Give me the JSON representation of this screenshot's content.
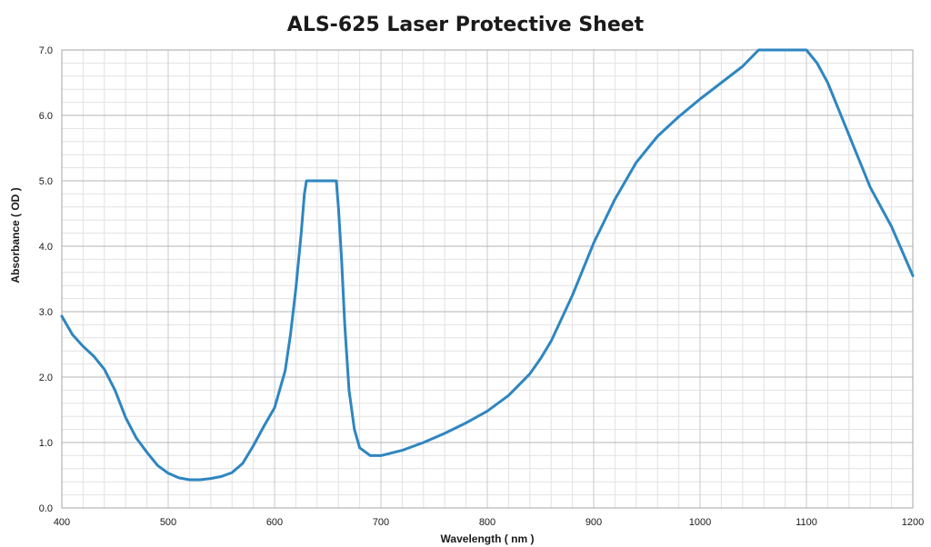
{
  "chart_data": {
    "type": "line",
    "title": "ALS-625 Laser Protective Sheet",
    "xlabel": "Wavelength ( nm )",
    "ylabel": "Absorbance ( OD )",
    "xlim": [
      400,
      1200
    ],
    "ylim": [
      0,
      7
    ],
    "x_ticks": [
      "400",
      "500",
      "600",
      "700",
      "800",
      "900",
      "1000",
      "1100",
      "1200"
    ],
    "y_ticks": [
      "0.0",
      "1.0",
      "2.0",
      "3.0",
      "4.0",
      "5.0",
      "6.0",
      "7.0"
    ],
    "grid": true,
    "legend": "none",
    "series_color": "#2E86C1",
    "series": [
      {
        "points": [
          [
            400,
            2.93
          ],
          [
            410,
            2.65
          ],
          [
            420,
            2.47
          ],
          [
            430,
            2.32
          ],
          [
            440,
            2.12
          ],
          [
            450,
            1.8
          ],
          [
            460,
            1.38
          ],
          [
            470,
            1.07
          ],
          [
            480,
            0.85
          ],
          [
            490,
            0.65
          ],
          [
            500,
            0.53
          ],
          [
            510,
            0.46
          ],
          [
            520,
            0.43
          ],
          [
            530,
            0.43
          ],
          [
            540,
            0.45
          ],
          [
            550,
            0.48
          ],
          [
            560,
            0.54
          ],
          [
            570,
            0.68
          ],
          [
            580,
            0.95
          ],
          [
            590,
            1.25
          ],
          [
            600,
            1.53
          ],
          [
            610,
            2.1
          ],
          [
            615,
            2.65
          ],
          [
            620,
            3.35
          ],
          [
            625,
            4.2
          ],
          [
            628,
            4.8
          ],
          [
            630,
            5.0
          ],
          [
            645,
            5.0
          ],
          [
            658,
            5.0
          ],
          [
            660,
            4.6
          ],
          [
            663,
            3.8
          ],
          [
            666,
            2.8
          ],
          [
            670,
            1.8
          ],
          [
            675,
            1.2
          ],
          [
            680,
            0.92
          ],
          [
            690,
            0.8
          ],
          [
            700,
            0.8
          ],
          [
            720,
            0.88
          ],
          [
            740,
            1.0
          ],
          [
            760,
            1.14
          ],
          [
            780,
            1.3
          ],
          [
            800,
            1.48
          ],
          [
            820,
            1.72
          ],
          [
            840,
            2.05
          ],
          [
            850,
            2.28
          ],
          [
            860,
            2.55
          ],
          [
            870,
            2.9
          ],
          [
            880,
            3.25
          ],
          [
            890,
            3.65
          ],
          [
            900,
            4.05
          ],
          [
            920,
            4.72
          ],
          [
            940,
            5.28
          ],
          [
            960,
            5.68
          ],
          [
            980,
            5.98
          ],
          [
            1000,
            6.25
          ],
          [
            1020,
            6.5
          ],
          [
            1040,
            6.75
          ],
          [
            1055,
            7.0
          ],
          [
            1100,
            7.0
          ],
          [
            1110,
            6.8
          ],
          [
            1120,
            6.5
          ],
          [
            1140,
            5.7
          ],
          [
            1160,
            4.9
          ],
          [
            1180,
            4.3
          ],
          [
            1200,
            3.55
          ]
        ]
      }
    ]
  }
}
